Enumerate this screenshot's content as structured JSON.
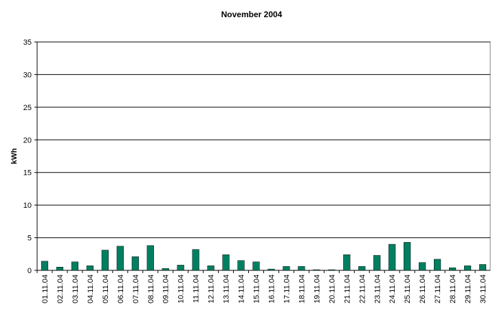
{
  "chart_data": {
    "type": "bar",
    "title": "November 2004",
    "y_label": "kWh",
    "categories": [
      "01.11.04",
      "02.11.04",
      "03.11.04",
      "04.11.04",
      "05.11.04",
      "06.11.04",
      "07.11.04",
      "08.11.04",
      "09.11.04",
      "10.11.04",
      "11.11.04",
      "12.11.04",
      "13.11.04",
      "14.11.04",
      "15.11.04",
      "16.11.04",
      "17.11.04",
      "18.11.04",
      "19.11.04",
      "20.11.04",
      "21.11.04",
      "22.11.04",
      "23.11.04",
      "24.11.04",
      "25.11.04",
      "26.11.04",
      "27.11.04",
      "28.11.04",
      "29.11.04",
      "30.11.04"
    ],
    "values": [
      1.4,
      0.5,
      1.3,
      0.7,
      3.1,
      3.7,
      2.1,
      3.8,
      0.3,
      0.8,
      3.2,
      0.7,
      2.4,
      1.5,
      1.3,
      0.2,
      0.6,
      0.6,
      0.1,
      0.1,
      2.4,
      0.6,
      2.3,
      4.0,
      4.3,
      1.2,
      1.7,
      0.4,
      0.7,
      0.9
    ],
    "color": "#008060",
    "ylim": [
      0,
      35
    ],
    "yticks": [
      0,
      5,
      10,
      15,
      20,
      25,
      30,
      35
    ],
    "grid": true
  }
}
